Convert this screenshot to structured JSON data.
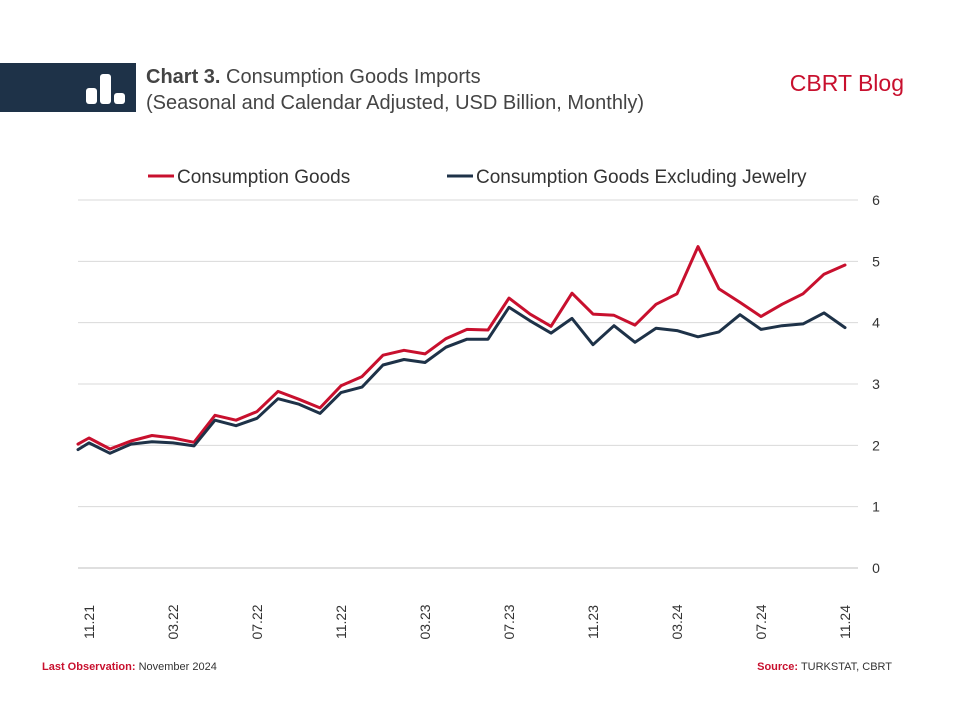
{
  "header": {
    "chart_number": "Chart 3.",
    "title": "Consumption Goods Imports",
    "subtitle": "(Seasonal and Calendar Adjusted, USD Billion, Monthly)",
    "brand": "CBRT Blog",
    "logo_icon": "bar-chart-icon"
  },
  "footer": {
    "last_obs_label": "Last Observation:",
    "last_obs_value": "November 2024",
    "source_label": "Source:",
    "source_value": "TURKSTAT, CBRT"
  },
  "colors": {
    "accent": "#c8102e",
    "navy": "#1e3248",
    "grid": "#d9d9d9",
    "text": "#333333"
  },
  "chart_data": {
    "type": "line",
    "x": [
      "11.21",
      "12.21",
      "01.22",
      "02.22",
      "03.22",
      "04.22",
      "05.22",
      "06.22",
      "07.22",
      "08.22",
      "09.22",
      "10.22",
      "11.22",
      "12.22",
      "01.23",
      "02.23",
      "03.23",
      "04.23",
      "05.23",
      "06.23",
      "07.23",
      "08.23",
      "09.23",
      "10.23",
      "11.23",
      "12.23",
      "01.24",
      "02.24",
      "03.24",
      "04.24",
      "05.24",
      "06.24",
      "07.24",
      "08.24",
      "09.24",
      "10.24",
      "11.24"
    ],
    "tick_labels": [
      "11.21",
      "03.22",
      "07.22",
      "11.22",
      "03.23",
      "07.23",
      "11.23",
      "03.24",
      "07.24",
      "11.24"
    ],
    "tick_indices": [
      0,
      4,
      8,
      12,
      16,
      20,
      24,
      28,
      32,
      36
    ],
    "series": [
      {
        "name": "Consumption Goods",
        "color": "#c8102e",
        "values": [
          2.12,
          1.94,
          2.07,
          2.16,
          2.12,
          2.05,
          2.49,
          2.41,
          2.55,
          2.88,
          2.75,
          2.61,
          2.97,
          3.12,
          3.47,
          3.55,
          3.49,
          3.74,
          3.89,
          3.88,
          4.4,
          4.14,
          3.94,
          4.48,
          4.14,
          4.12,
          3.96,
          4.3,
          4.47,
          5.24,
          4.55,
          4.33,
          4.1,
          4.3,
          4.47,
          4.79,
          4.94
        ]
      },
      {
        "name": "Consumption Goods Excluding Jewelry",
        "color": "#1e3248",
        "values": [
          2.04,
          1.87,
          2.02,
          2.06,
          2.04,
          1.99,
          2.41,
          2.32,
          2.44,
          2.76,
          2.67,
          2.52,
          2.86,
          2.95,
          3.31,
          3.4,
          3.35,
          3.6,
          3.73,
          3.73,
          4.25,
          4.03,
          3.83,
          4.07,
          3.64,
          3.95,
          3.68,
          3.91,
          3.87,
          3.77,
          3.85,
          4.13,
          3.89,
          3.95,
          3.98,
          4.16,
          3.92
        ]
      }
    ],
    "start_value": {
      "consumption_goods": 2.02,
      "excluding_jewelry": 1.93
    },
    "ylim": [
      0,
      6
    ],
    "yticks": [
      "0",
      "1",
      "2",
      "3",
      "4",
      "5",
      "6"
    ],
    "y_axis_side": "right",
    "grid": true,
    "legend_position": "top"
  }
}
